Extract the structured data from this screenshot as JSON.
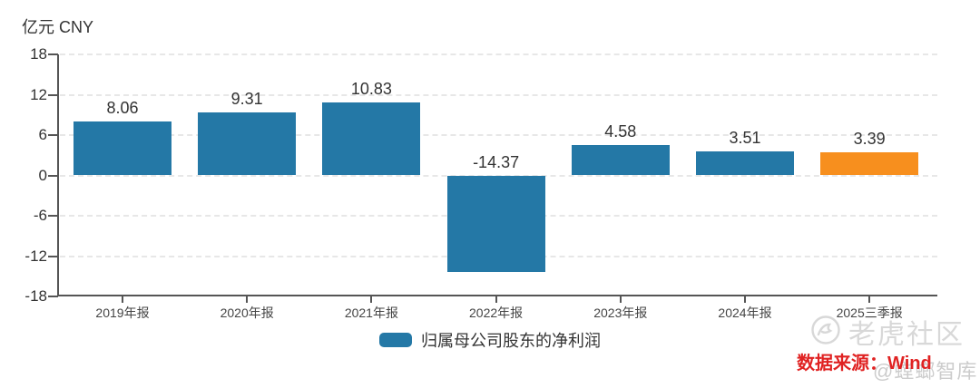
{
  "unit_label": "亿元 CNY",
  "chart_data": {
    "type": "bar",
    "title": "",
    "categories": [
      "2019年报",
      "2020年报",
      "2021年报",
      "2022年报",
      "2023年报",
      "2024年报",
      "2025三季报"
    ],
    "values": [
      8.06,
      9.31,
      10.83,
      -14.37,
      4.58,
      3.51,
      3.39
    ],
    "labels": [
      "8.06",
      "9.31",
      "10.83",
      "-14.37",
      "4.58",
      "3.51",
      "3.39"
    ],
    "bar_colors": [
      "#2478a6",
      "#2478a6",
      "#2478a6",
      "#2478a6",
      "#2478a6",
      "#2478a6",
      "#f78f1e"
    ],
    "series_name": "归属母公司股东的净利润",
    "xlabel": "",
    "ylabel": "亿元 CNY",
    "y_ticks": [
      18,
      12,
      6,
      0,
      -6,
      -12,
      -18
    ],
    "ylim": [
      -18,
      18
    ],
    "grid": "horizontal-dashed",
    "legend_position": "bottom-center"
  },
  "legend": {
    "label": "归属母公司股东的净利润",
    "swatch_color": "#2478a6"
  },
  "source": {
    "text": "数据来源：Wind",
    "color": "#e02222"
  },
  "watermarks": {
    "community": "老虎社区",
    "handle": "@螳螂智库"
  },
  "colors": {
    "bar_default": "#2478a6",
    "bar_highlight": "#f78f1e",
    "axis": "#555555",
    "grid": "#e7e7e7",
    "text": "#333333",
    "watermark": "#d8d8d8"
  }
}
